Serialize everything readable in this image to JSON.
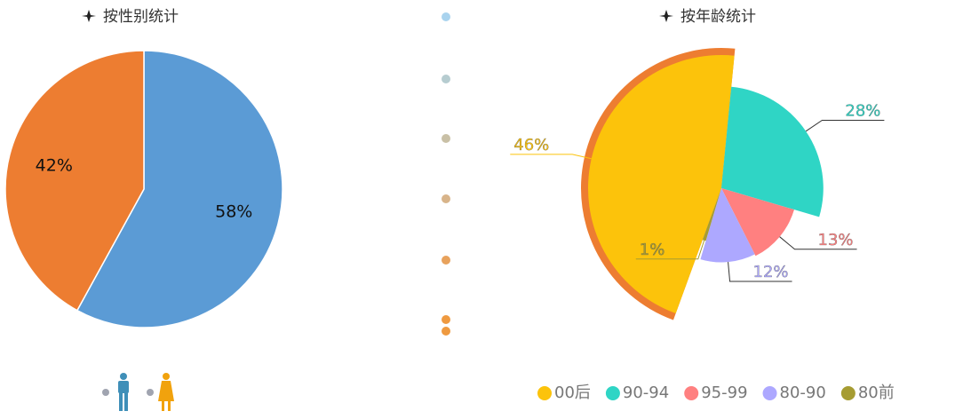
{
  "charts": [
    {
      "chart_data": {
        "type": "pie",
        "title": "按性别统计",
        "values": [
          58,
          42
        ],
        "value_labels": [
          "58%",
          "42%"
        ],
        "colors": [
          "#5b9bd5",
          "#ed7d31"
        ]
      }
    },
    {
      "chart_data": {
        "type": "rose",
        "title": "按年龄统计",
        "categories": [
          "00后",
          "90-94",
          "95-99",
          "80-90",
          "80前"
        ],
        "values": [
          46,
          28,
          13,
          12,
          1
        ],
        "value_labels": [
          "46%",
          "28%",
          "13%",
          "12%",
          "1%"
        ],
        "colors": [
          "#fcc30b",
          "#2fd5c5",
          "#ff8080",
          "#ada8ff",
          "#a69c32"
        ]
      }
    }
  ]
}
